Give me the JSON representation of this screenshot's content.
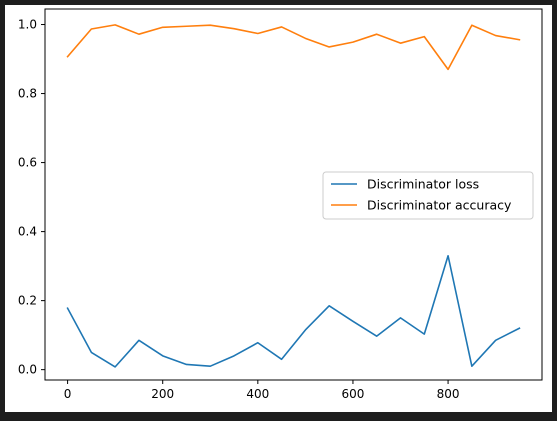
{
  "chart_data": {
    "type": "line",
    "title": "",
    "xlabel": "",
    "ylabel": "",
    "xlim": [
      -47.5,
      997.5
    ],
    "ylim": [
      -0.03,
      1.045
    ],
    "xticks": [
      0,
      200,
      400,
      600,
      800
    ],
    "xtick_labels": [
      "0",
      "200",
      "400",
      "600",
      "800"
    ],
    "yticks": [
      0.0,
      0.2,
      0.4,
      0.6,
      0.8,
      1.0
    ],
    "ytick_labels": [
      "0.0",
      "0.2",
      "0.4",
      "0.6",
      "0.8",
      "1.0"
    ],
    "grid": false,
    "legend_position": "center-right",
    "x": [
      0,
      50,
      100,
      150,
      200,
      250,
      300,
      350,
      400,
      450,
      500,
      550,
      600,
      650,
      700,
      750,
      800,
      850,
      900,
      950
    ],
    "series": [
      {
        "name": "Discriminator loss",
        "color": "#1f77b4",
        "values": [
          0.178,
          0.05,
          0.008,
          0.085,
          0.04,
          0.015,
          0.01,
          0.04,
          0.078,
          0.03,
          0.115,
          0.185,
          0.14,
          0.097,
          0.15,
          0.103,
          0.33,
          0.01,
          0.085,
          0.12
        ]
      },
      {
        "name": "Discriminator accuracy",
        "color": "#ff7f0e",
        "values": [
          0.907,
          0.987,
          0.999,
          0.972,
          0.992,
          0.995,
          0.998,
          0.988,
          0.974,
          0.993,
          0.96,
          0.935,
          0.949,
          0.972,
          0.946,
          0.965,
          0.87,
          0.998,
          0.968,
          0.956
        ]
      }
    ]
  }
}
